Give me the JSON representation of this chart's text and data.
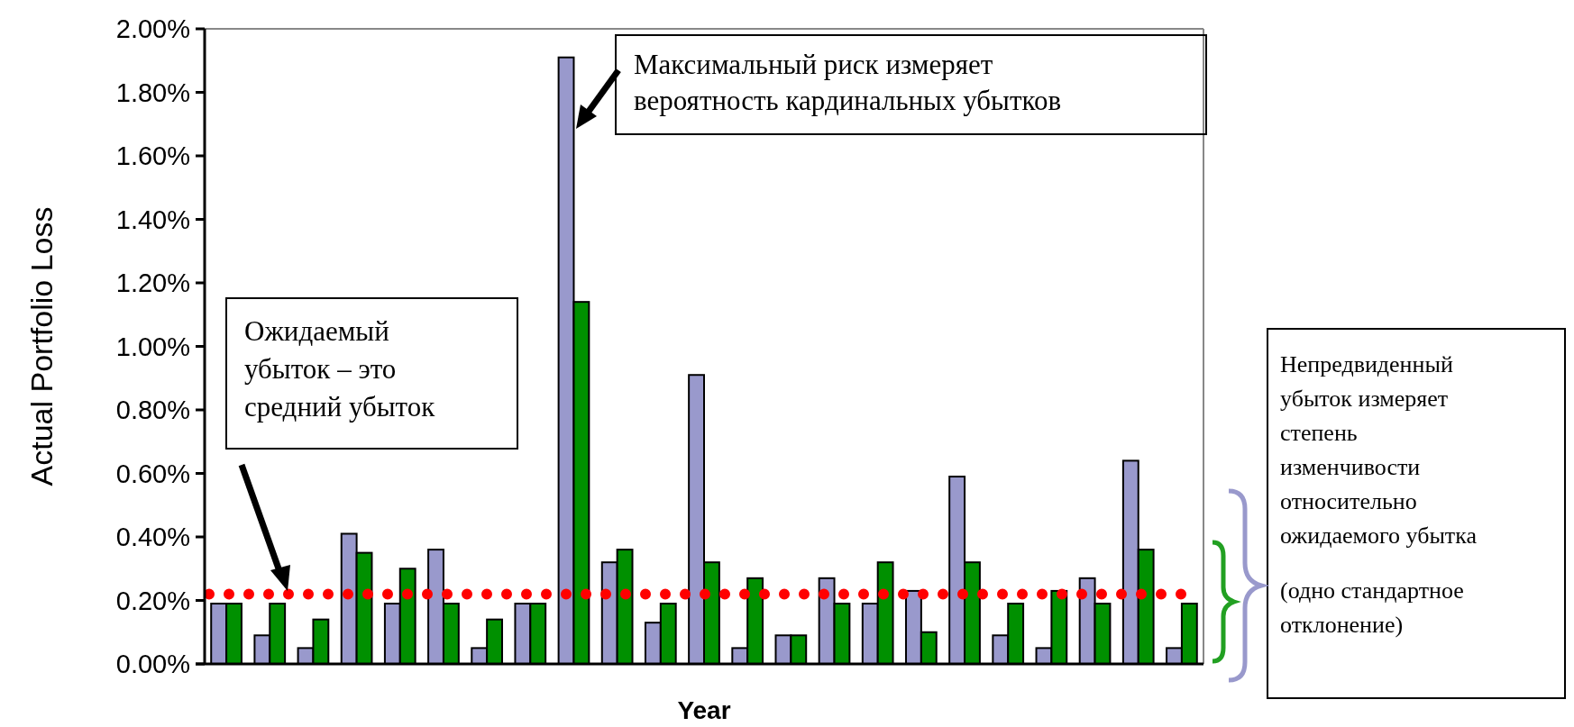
{
  "chart_data": {
    "type": "bar",
    "xlabel": "Year",
    "ylabel": "Actual Portfolio Loss",
    "categories": [
      null,
      null,
      null,
      null,
      null,
      null,
      null,
      null,
      null,
      null,
      null,
      null,
      null,
      null,
      null,
      null,
      null,
      null,
      null,
      null,
      null,
      null,
      null
    ],
    "series": [
      {
        "color": "#9999cc",
        "values": [
          0.19,
          0.09,
          0.05,
          0.41,
          0.19,
          0.36,
          0.05,
          0.19,
          1.91,
          0.32,
          0.13,
          0.91,
          0.05,
          0.09,
          0.27,
          0.19,
          0.23,
          0.59,
          0.09,
          0.05,
          0.27,
          0.64,
          0.05
        ]
      },
      {
        "color": "#009000",
        "values": [
          0.19,
          0.19,
          0.14,
          0.35,
          0.3,
          0.19,
          0.14,
          0.19,
          1.14,
          0.36,
          0.19,
          0.32,
          0.27,
          0.09,
          0.19,
          0.32,
          0.1,
          0.32,
          0.19,
          0.23,
          0.19,
          0.36,
          0.19
        ]
      }
    ],
    "ylim": [
      0,
      2
    ],
    "yticks": [
      {
        "value": 0,
        "label": "0.00%"
      },
      {
        "value": 0.2,
        "label": "0.20%"
      },
      {
        "value": 0.4,
        "label": "0.40%"
      },
      {
        "value": 0.6,
        "label": "0.60%"
      },
      {
        "value": 0.8,
        "label": "0.80%"
      },
      {
        "value": 1,
        "label": "1.00%"
      },
      {
        "value": 1.2,
        "label": "1.20%"
      },
      {
        "value": 1.4,
        "label": "1.40%"
      },
      {
        "value": 1.6,
        "label": "1.60%"
      },
      {
        "value": 1.8,
        "label": "1.80%"
      },
      {
        "value": 2,
        "label": "2.00%"
      }
    ],
    "ref_lines": [
      {
        "axis": "y",
        "value": 0.22,
        "color": "#ff0000",
        "line_style": "dotted"
      }
    ],
    "annotations": [
      "Максимальный риск измеряет\nвероятность кардинальных убытков",
      "Ожидаемый\nубыток – это\nсредний убыток",
      "Непредвиденный\nубыток измеряет\nстепень\nизменчивости\nотносительно\nожидаемого убытка\n\n(одно стандартное\nотклонение)"
    ],
    "grid": false
  }
}
